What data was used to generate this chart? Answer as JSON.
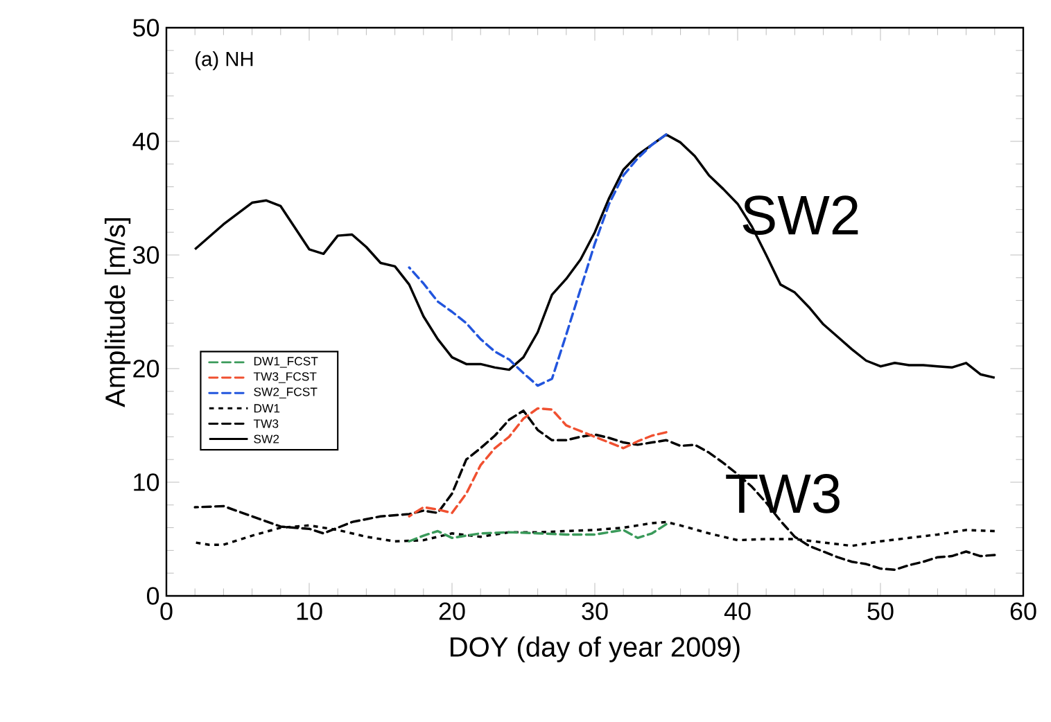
{
  "chart_data": {
    "type": "line",
    "xlabel": "DOY (day of year 2009)",
    "ylabel": "Amplitude [m/s]",
    "annotations": [
      "(a) NH",
      "SW2",
      "TW3"
    ],
    "xlim": [
      0,
      60
    ],
    "ylim": [
      0,
      50
    ],
    "xticks": [
      0,
      10,
      20,
      30,
      40,
      50,
      60
    ],
    "yticks": [
      0,
      10,
      20,
      30,
      40,
      50
    ],
    "legend": "left",
    "grid": false,
    "series": [
      {
        "name": "DW1_FCST",
        "color": "#3a9a5a",
        "line_style": "dashed",
        "x": [
          17,
          18,
          19,
          20,
          22,
          24,
          26,
          28,
          30,
          32,
          33,
          34,
          35
        ],
        "values": [
          4.8,
          5.3,
          5.7,
          5.1,
          5.5,
          5.6,
          5.5,
          5.4,
          5.4,
          5.8,
          5.1,
          5.5,
          6.3
        ]
      },
      {
        "name": "TW3_FCST",
        "color": "#f05030",
        "line_style": "dashed",
        "x": [
          17,
          18,
          19,
          20,
          21,
          22,
          23,
          24,
          25,
          26,
          27,
          28,
          29,
          30,
          31,
          32,
          33,
          34,
          35
        ],
        "values": [
          7.0,
          7.8,
          7.6,
          7.3,
          9,
          11.5,
          13,
          14,
          15.6,
          16.5,
          16.4,
          15,
          14.5,
          14,
          13.5,
          13,
          13.6,
          14.1,
          14.4
        ]
      },
      {
        "name": "SW2_FCST",
        "color": "#2255dd",
        "line_style": "dashed",
        "x": [
          17,
          18,
          19,
          20,
          21,
          22,
          23,
          24,
          25,
          26,
          27,
          28,
          29,
          30,
          31,
          32,
          33,
          34,
          35
        ],
        "values": [
          28.9,
          27.5,
          25.9,
          25,
          24,
          22.6,
          21.5,
          20.8,
          19.6,
          18.5,
          19.1,
          23,
          27,
          31,
          34.5,
          37,
          38.5,
          39.7,
          40.6
        ]
      },
      {
        "name": "DW1",
        "color": "#000000",
        "line_style": "dotted",
        "x": [
          2,
          3,
          4,
          6,
          8,
          10,
          12,
          14,
          16,
          18,
          20,
          22,
          24,
          26,
          28,
          30,
          32,
          34,
          35,
          36,
          38,
          40,
          42,
          44,
          46,
          48,
          50,
          52,
          54,
          56,
          58
        ],
        "values": [
          4.7,
          4.5,
          4.5,
          5.3,
          6.0,
          6.2,
          5.8,
          5.2,
          4.8,
          4.9,
          5.5,
          5.2,
          5.6,
          5.6,
          5.7,
          5.8,
          6.0,
          6.4,
          6.5,
          6.2,
          5.5,
          4.9,
          5.0,
          5.0,
          4.7,
          4.4,
          4.8,
          5.1,
          5.4,
          5.8,
          5.7
        ]
      },
      {
        "name": "TW3",
        "color": "#000000",
        "line_style": "dashed",
        "x": [
          2,
          4,
          6,
          8,
          10,
          11,
          13,
          15,
          17,
          18,
          19,
          20,
          21,
          22,
          23,
          24,
          25,
          26,
          27,
          28,
          29,
          30,
          31,
          32,
          33,
          34,
          35,
          36,
          37,
          38,
          39,
          40,
          41,
          42,
          43,
          44,
          45,
          46,
          47,
          48,
          49,
          50,
          51,
          52,
          53,
          54,
          55,
          56,
          57,
          58
        ],
        "values": [
          7.8,
          7.9,
          7,
          6.1,
          5.9,
          5.5,
          6.5,
          7,
          7.2,
          7.5,
          7.3,
          9,
          12,
          13,
          14.1,
          15.5,
          16.3,
          14.6,
          13.7,
          13.7,
          14,
          14.2,
          13.9,
          13.5,
          13.3,
          13.5,
          13.7,
          13.2,
          13.3,
          12.6,
          11.7,
          10.7,
          9.6,
          8.2,
          6.6,
          5.2,
          4.4,
          3.9,
          3.4,
          3.0,
          2.8,
          2.4,
          2.3,
          2.7,
          3.0,
          3.4,
          3.5,
          3.9,
          3.5,
          3.6
        ]
      },
      {
        "name": "SW2",
        "color": "#000000",
        "line_style": "solid",
        "x": [
          2,
          4,
          6,
          7,
          8,
          10,
          11,
          12,
          13,
          14,
          15,
          16,
          17,
          18,
          19,
          20,
          21,
          22,
          23,
          24,
          25,
          26,
          27,
          28,
          29,
          30,
          31,
          32,
          33,
          34,
          35,
          36,
          37,
          38,
          39,
          40,
          41,
          42,
          43,
          44,
          45,
          46,
          47,
          48,
          49,
          50,
          51,
          52,
          53,
          54,
          55,
          56,
          57,
          58
        ],
        "values": [
          30.5,
          32.7,
          34.6,
          34.8,
          34.3,
          30.5,
          30.1,
          31.7,
          31.8,
          30.7,
          29.3,
          29.0,
          27.4,
          24.6,
          22.6,
          21,
          20.4,
          20.4,
          20.1,
          19.9,
          21,
          23.2,
          26.5,
          27.9,
          29.6,
          32,
          35,
          37.5,
          38.8,
          39.7,
          40.6,
          39.9,
          38.7,
          37,
          35.8,
          34.5,
          32.5,
          30,
          27.4,
          26.7,
          25.4,
          23.9,
          22.8,
          21.7,
          20.7,
          20.2,
          20.5,
          20.3,
          20.3,
          20.2,
          20.1,
          20.5,
          19.5,
          19.2
        ]
      }
    ]
  }
}
